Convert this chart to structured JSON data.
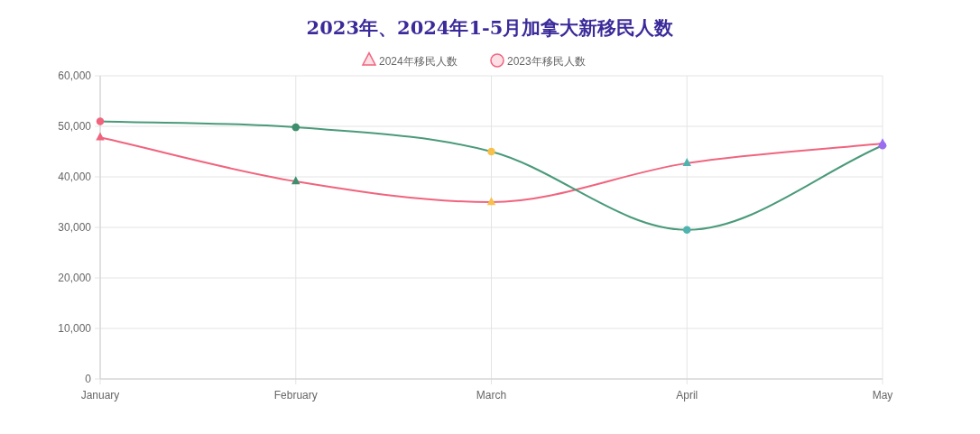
{
  "chart_data": {
    "type": "line",
    "title": "2023年、2024年1-5月加拿大新移民人数",
    "categories": [
      "January",
      "February",
      "March",
      "April",
      "May"
    ],
    "ylim": [
      0,
      60000
    ],
    "yticks": [
      {
        "value": 0,
        "label": "0"
      },
      {
        "value": 10000,
        "label": "10,000"
      },
      {
        "value": 20000,
        "label": "20,000"
      },
      {
        "value": 30000,
        "label": "30,000"
      },
      {
        "value": 40000,
        "label": "40,000"
      },
      {
        "value": 50000,
        "label": "50,000"
      },
      {
        "value": 60000,
        "label": "60,000"
      }
    ],
    "grid": true,
    "legend": "top",
    "series": [
      {
        "name": "2024年移民人数",
        "color": "#f0647e",
        "marker": "triangle",
        "colors": [
          "#f0647e",
          "#3f8f6e",
          "#f7c04a",
          "#4fb3b0",
          "#9b6cf0"
        ],
        "values": [
          47800,
          39100,
          35000,
          42700,
          46600
        ]
      },
      {
        "name": "2023年移民人数",
        "color": "#4a9a7a",
        "marker": "circle",
        "colors": [
          "#f0647e",
          "#3f8f6e",
          "#f7c04a",
          "#4fb3b0",
          "#9b6cf0"
        ],
        "values": [
          51000,
          49800,
          45000,
          29500,
          46200
        ]
      }
    ]
  }
}
